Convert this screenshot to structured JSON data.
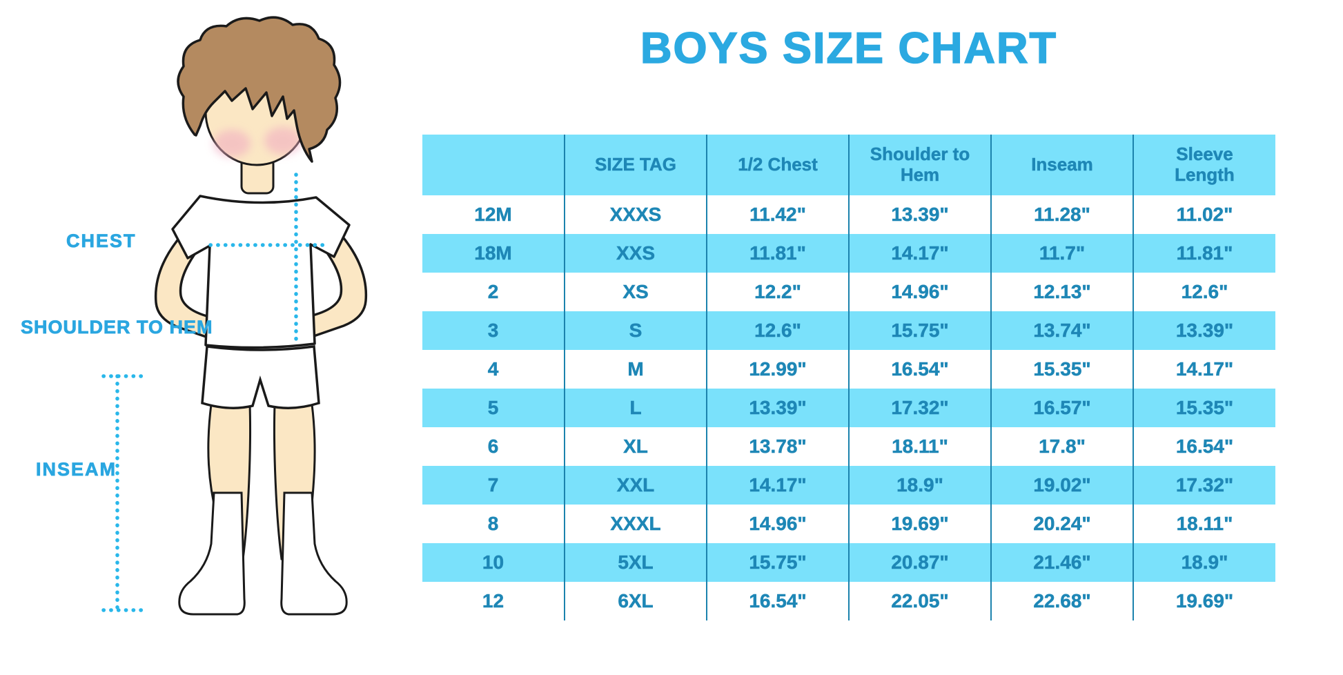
{
  "title": "BOYS SIZE CHART",
  "diagram_labels": {
    "chest": "CHEST",
    "shoulder_to_hem": "SHOULDER TO HEM",
    "inseam": "INSEAM"
  },
  "chart_data": {
    "type": "table",
    "title": "BOYS SIZE CHART",
    "columns": [
      "",
      "SIZE TAG",
      "1/2 Chest",
      "Shoulder to Hem",
      "Inseam",
      "Sleeve Length"
    ],
    "rows": [
      [
        "12M",
        "XXXS",
        "11.42\"",
        "13.39\"",
        "11.28\"",
        "11.02\""
      ],
      [
        "18M",
        "XXS",
        "11.81\"",
        "14.17\"",
        "11.7\"",
        "11.81\""
      ],
      [
        "2",
        "XS",
        "12.2\"",
        "14.96\"",
        "12.13\"",
        "12.6\""
      ],
      [
        "3",
        "S",
        "12.6\"",
        "15.75\"",
        "13.74\"",
        "13.39\""
      ],
      [
        "4",
        "M",
        "12.99\"",
        "16.54\"",
        "15.35\"",
        "14.17\""
      ],
      [
        "5",
        "L",
        "13.39\"",
        "17.32\"",
        "16.57\"",
        "15.35\""
      ],
      [
        "6",
        "XL",
        "13.78\"",
        "18.11\"",
        "17.8\"",
        "16.54\""
      ],
      [
        "7",
        "XXL",
        "14.17\"",
        "18.9\"",
        "19.02\"",
        "17.32\""
      ],
      [
        "8",
        "XXXL",
        "14.96\"",
        "19.69\"",
        "20.24\"",
        "18.11\""
      ],
      [
        "10",
        "5XL",
        "15.75\"",
        "20.87\"",
        "21.46\"",
        "18.9\""
      ],
      [
        "12",
        "6XL",
        "16.54\"",
        "22.05\"",
        "22.68\"",
        "19.69\""
      ]
    ],
    "row_striping": "alternate rows highlighted, starting with second row",
    "legend_position": "none",
    "grid": "vertical column dividers only"
  },
  "colors": {
    "title_blue": "#2BA9E1",
    "table_text_blue": "#1E87B6",
    "stripe_cyan": "#7AE1FB",
    "divider_blue": "#1B82AD",
    "label_blue": "#2AA6E0",
    "dotted_line_cyan": "#29B7EA",
    "hair_brown": "#B48A60",
    "skin": "#FBE7C4",
    "cheek_pink": "#F1AEC2",
    "outline_black": "#1A1A1A"
  }
}
